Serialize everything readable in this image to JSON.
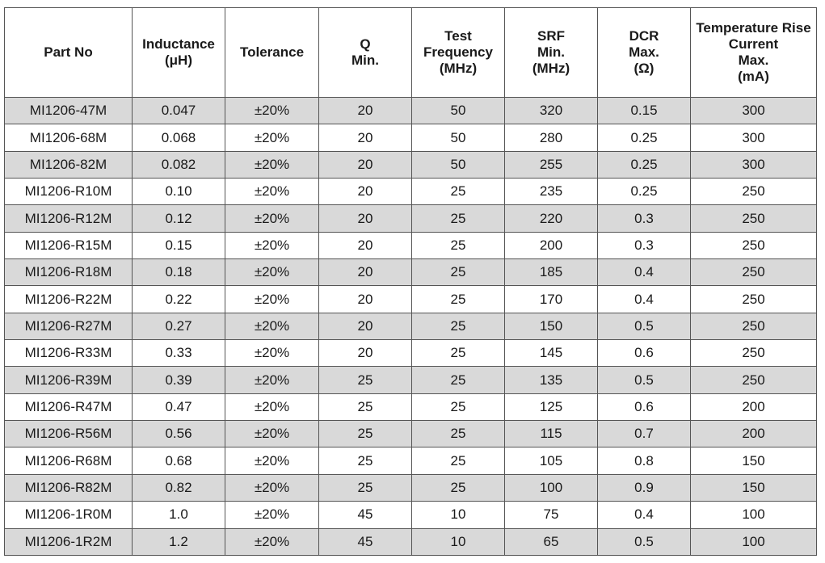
{
  "table": {
    "headers": [
      {
        "key": "part_no",
        "lines": [
          "Part No"
        ]
      },
      {
        "key": "inductance",
        "lines": [
          "Inductance",
          "(μH)"
        ]
      },
      {
        "key": "tolerance",
        "lines": [
          "Tolerance"
        ]
      },
      {
        "key": "q_min",
        "lines": [
          "Q",
          "Min."
        ]
      },
      {
        "key": "test_frequency",
        "lines": [
          "Test",
          "Frequency",
          "(MHz)"
        ]
      },
      {
        "key": "srf_min",
        "lines": [
          "SRF",
          "Min.",
          "(MHz)"
        ]
      },
      {
        "key": "dcr_max",
        "lines": [
          "DCR",
          "Max.",
          "(Ω)"
        ]
      },
      {
        "key": "temp_rise_current",
        "lines": [
          "Temperature Rise",
          "Current",
          "Max.",
          "(mA)"
        ]
      }
    ],
    "rows": [
      [
        "MI1206-47M",
        "0.047",
        "±20%",
        "20",
        "50",
        "320",
        "0.15",
        "300"
      ],
      [
        "MI1206-68M",
        "0.068",
        "±20%",
        "20",
        "50",
        "280",
        "0.25",
        "300"
      ],
      [
        "MI1206-82M",
        "0.082",
        "±20%",
        "20",
        "50",
        "255",
        "0.25",
        "300"
      ],
      [
        "MI1206-R10M",
        "0.10",
        "±20%",
        "20",
        "25",
        "235",
        "0.25",
        "250"
      ],
      [
        "MI1206-R12M",
        "0.12",
        "±20%",
        "20",
        "25",
        "220",
        "0.3",
        "250"
      ],
      [
        "MI1206-R15M",
        "0.15",
        "±20%",
        "20",
        "25",
        "200",
        "0.3",
        "250"
      ],
      [
        "MI1206-R18M",
        "0.18",
        "±20%",
        "20",
        "25",
        "185",
        "0.4",
        "250"
      ],
      [
        "MI1206-R22M",
        "0.22",
        "±20%",
        "20",
        "25",
        "170",
        "0.4",
        "250"
      ],
      [
        "MI1206-R27M",
        "0.27",
        "±20%",
        "20",
        "25",
        "150",
        "0.5",
        "250"
      ],
      [
        "MI1206-R33M",
        "0.33",
        "±20%",
        "20",
        "25",
        "145",
        "0.6",
        "250"
      ],
      [
        "MI1206-R39M",
        "0.39",
        "±20%",
        "25",
        "25",
        "135",
        "0.5",
        "250"
      ],
      [
        "MI1206-R47M",
        "0.47",
        "±20%",
        "25",
        "25",
        "125",
        "0.6",
        "200"
      ],
      [
        "MI1206-R56M",
        "0.56",
        "±20%",
        "25",
        "25",
        "115",
        "0.7",
        "200"
      ],
      [
        "MI1206-R68M",
        "0.68",
        "±20%",
        "25",
        "25",
        "105",
        "0.8",
        "150"
      ],
      [
        "MI1206-R82M",
        "0.82",
        "±20%",
        "25",
        "25",
        "100",
        "0.9",
        "150"
      ],
      [
        "MI1206-1R0M",
        "1.0",
        "±20%",
        "45",
        "10",
        "75",
        "0.4",
        "100"
      ],
      [
        "MI1206-1R2M",
        "1.2",
        "±20%",
        "45",
        "10",
        "65",
        "0.5",
        "100"
      ]
    ],
    "colors": {
      "stripe": "#d9d9d9",
      "background": "#ffffff",
      "border": "#555555",
      "text": "#1a1a1a"
    }
  }
}
